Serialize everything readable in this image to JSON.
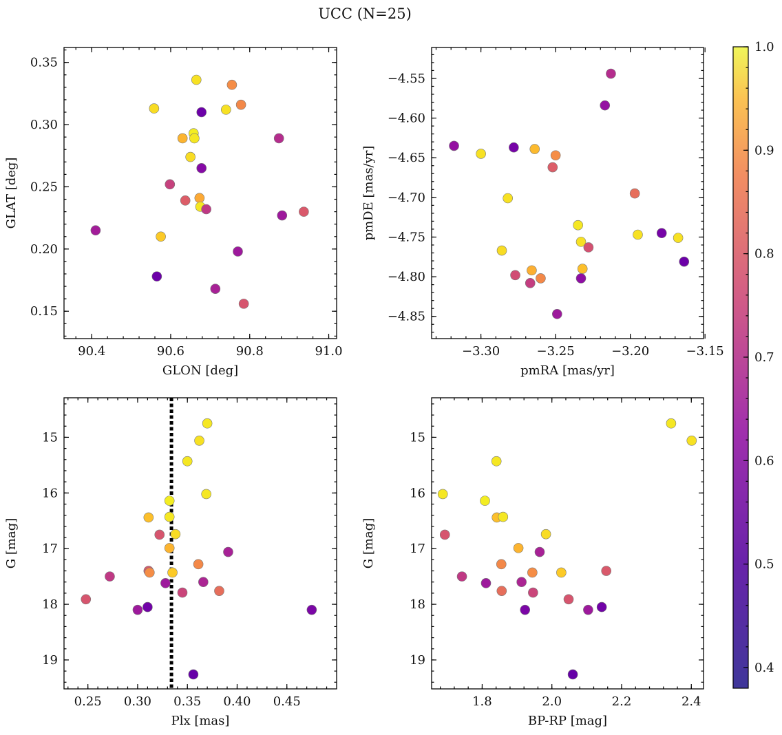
{
  "title": "UCC (N=25)",
  "colorbar": {
    "range": [
      0.38,
      1.0
    ],
    "ticks": [
      0.4,
      0.5,
      0.6,
      0.7,
      0.8,
      0.9,
      1.0
    ],
    "tick_labels": [
      "0.4",
      "0.5",
      "0.6",
      "0.7",
      "0.8",
      "0.9",
      "1.0"
    ],
    "colormap": "plasma"
  },
  "chart_data": [
    {
      "type": "scatter",
      "xlabel": "GLON [deg]",
      "ylabel": "GLAT [deg]",
      "xlim": [
        90.33,
        91.02
      ],
      "ylim": [
        0.128,
        0.362
      ],
      "xticks": [
        90.4,
        90.6,
        90.8,
        91.0
      ],
      "xtick_labels": [
        "90.4",
        "90.6",
        "90.8",
        "91.0"
      ],
      "yticks": [
        0.15,
        0.2,
        0.25,
        0.3,
        0.35
      ],
      "ytick_labels": [
        "0.15",
        "0.20",
        "0.25",
        "0.30",
        "0.35"
      ],
      "x_inverted": false,
      "y_inverted": false,
      "points": [
        {
          "x": 90.665,
          "y": 0.336,
          "c": 0.96
        },
        {
          "x": 90.755,
          "y": 0.332,
          "c": 0.8
        },
        {
          "x": 90.558,
          "y": 0.313,
          "c": 0.95
        },
        {
          "x": 90.74,
          "y": 0.312,
          "c": 0.96
        },
        {
          "x": 90.778,
          "y": 0.316,
          "c": 0.79
        },
        {
          "x": 90.678,
          "y": 0.31,
          "c": 0.42
        },
        {
          "x": 90.63,
          "y": 0.289,
          "c": 0.88
        },
        {
          "x": 90.658,
          "y": 0.293,
          "c": 0.98
        },
        {
          "x": 90.66,
          "y": 0.289,
          "c": 0.97
        },
        {
          "x": 90.874,
          "y": 0.289,
          "c": 0.57
        },
        {
          "x": 90.65,
          "y": 0.274,
          "c": 0.95
        },
        {
          "x": 90.678,
          "y": 0.265,
          "c": 0.47
        },
        {
          "x": 90.598,
          "y": 0.252,
          "c": 0.62
        },
        {
          "x": 90.637,
          "y": 0.239,
          "c": 0.69
        },
        {
          "x": 90.673,
          "y": 0.241,
          "c": 0.86
        },
        {
          "x": 90.675,
          "y": 0.234,
          "c": 0.97
        },
        {
          "x": 90.69,
          "y": 0.232,
          "c": 0.6
        },
        {
          "x": 90.41,
          "y": 0.215,
          "c": 0.53
        },
        {
          "x": 90.882,
          "y": 0.227,
          "c": 0.52
        },
        {
          "x": 90.937,
          "y": 0.23,
          "c": 0.68
        },
        {
          "x": 90.575,
          "y": 0.21,
          "c": 0.92
        },
        {
          "x": 90.77,
          "y": 0.198,
          "c": 0.52
        },
        {
          "x": 90.565,
          "y": 0.178,
          "c": 0.42
        },
        {
          "x": 90.713,
          "y": 0.168,
          "c": 0.54
        },
        {
          "x": 90.785,
          "y": 0.156,
          "c": 0.67
        }
      ]
    },
    {
      "type": "scatter",
      "xlabel": "pmRA [mas/yr]",
      "ylabel": "pmDE [mas/yr]",
      "xlim": [
        -3.333,
        -3.151
      ],
      "ylim": [
        -4.878,
        -4.511
      ],
      "xticks": [
        -3.3,
        -3.25,
        -3.2,
        -3.15
      ],
      "xtick_labels": [
        "−3.30",
        "−3.25",
        "−3.20",
        "−3.15"
      ],
      "yticks": [
        -4.85,
        -4.8,
        -4.75,
        -4.7,
        -4.65,
        -4.6,
        -4.55
      ],
      "ytick_labels": [
        "−4.85",
        "−4.80",
        "−4.75",
        "−4.70",
        "−4.65",
        "−4.60",
        "−4.55"
      ],
      "x_inverted": false,
      "y_inverted": false,
      "points": [
        {
          "x": -3.213,
          "y": -4.544,
          "c": 0.57
        },
        {
          "x": -3.217,
          "y": -4.584,
          "c": 0.5
        },
        {
          "x": -3.318,
          "y": -4.635,
          "c": 0.5
        },
        {
          "x": -3.278,
          "y": -4.637,
          "c": 0.44
        },
        {
          "x": -3.3,
          "y": -4.645,
          "c": 0.96
        },
        {
          "x": -3.264,
          "y": -4.639,
          "c": 0.89
        },
        {
          "x": -3.25,
          "y": -4.647,
          "c": 0.8
        },
        {
          "x": -3.252,
          "y": -4.662,
          "c": 0.69
        },
        {
          "x": -3.197,
          "y": -4.695,
          "c": 0.73
        },
        {
          "x": -3.282,
          "y": -4.701,
          "c": 0.96
        },
        {
          "x": -3.235,
          "y": -4.735,
          "c": 0.97
        },
        {
          "x": -3.233,
          "y": -4.756,
          "c": 0.96
        },
        {
          "x": -3.228,
          "y": -4.763,
          "c": 0.66
        },
        {
          "x": -3.195,
          "y": -4.747,
          "c": 0.96
        },
        {
          "x": -3.179,
          "y": -4.745,
          "c": 0.44
        },
        {
          "x": -3.168,
          "y": -4.751,
          "c": 0.96
        },
        {
          "x": -3.164,
          "y": -4.781,
          "c": 0.42
        },
        {
          "x": -3.286,
          "y": -4.767,
          "c": 0.95
        },
        {
          "x": -3.266,
          "y": -4.792,
          "c": 0.87
        },
        {
          "x": -3.232,
          "y": -4.79,
          "c": 0.9
        },
        {
          "x": -3.277,
          "y": -4.798,
          "c": 0.65
        },
        {
          "x": -3.26,
          "y": -4.802,
          "c": 0.79
        },
        {
          "x": -3.267,
          "y": -4.808,
          "c": 0.61
        },
        {
          "x": -3.233,
          "y": -4.802,
          "c": 0.49
        },
        {
          "x": -3.249,
          "y": -4.847,
          "c": 0.52
        }
      ]
    },
    {
      "type": "scatter",
      "xlabel": "Plx [mas]",
      "ylabel": "G [mag]",
      "xlim": [
        0.226,
        0.5
      ],
      "ylim": [
        19.52,
        14.29
      ],
      "xticks": [
        0.25,
        0.3,
        0.35,
        0.4,
        0.45
      ],
      "xtick_labels": [
        "0.25",
        "0.30",
        "0.35",
        "0.40",
        "0.45"
      ],
      "yticks": [
        15,
        16,
        17,
        18,
        19
      ],
      "ytick_labels": [
        "15",
        "16",
        "17",
        "18",
        "19"
      ],
      "x_inverted": false,
      "y_inverted": true,
      "vline": {
        "x": 0.334,
        "style": "dotted",
        "color": "#000000"
      },
      "points": [
        {
          "x": 0.37,
          "y": 14.75,
          "c": 0.97
        },
        {
          "x": 0.362,
          "y": 15.06,
          "c": 0.96
        },
        {
          "x": 0.35,
          "y": 15.43,
          "c": 0.97
        },
        {
          "x": 0.369,
          "y": 16.02,
          "c": 0.97
        },
        {
          "x": 0.332,
          "y": 16.14,
          "c": 0.98
        },
        {
          "x": 0.311,
          "y": 16.44,
          "c": 0.9
        },
        {
          "x": 0.332,
          "y": 16.43,
          "c": 0.97
        },
        {
          "x": 0.322,
          "y": 16.75,
          "c": 0.67
        },
        {
          "x": 0.338,
          "y": 16.74,
          "c": 0.95
        },
        {
          "x": 0.332,
          "y": 16.99,
          "c": 0.88
        },
        {
          "x": 0.391,
          "y": 17.06,
          "c": 0.54
        },
        {
          "x": 0.361,
          "y": 17.28,
          "c": 0.79
        },
        {
          "x": 0.311,
          "y": 17.4,
          "c": 0.68
        },
        {
          "x": 0.312,
          "y": 17.43,
          "c": 0.8
        },
        {
          "x": 0.335,
          "y": 17.43,
          "c": 0.92
        },
        {
          "x": 0.272,
          "y": 17.5,
          "c": 0.6
        },
        {
          "x": 0.328,
          "y": 17.62,
          "c": 0.52
        },
        {
          "x": 0.366,
          "y": 17.6,
          "c": 0.55
        },
        {
          "x": 0.345,
          "y": 17.79,
          "c": 0.63
        },
        {
          "x": 0.382,
          "y": 17.76,
          "c": 0.73
        },
        {
          "x": 0.248,
          "y": 17.91,
          "c": 0.67
        },
        {
          "x": 0.3,
          "y": 18.1,
          "c": 0.52
        },
        {
          "x": 0.31,
          "y": 18.05,
          "c": 0.43
        },
        {
          "x": 0.475,
          "y": 18.1,
          "c": 0.45
        },
        {
          "x": 0.356,
          "y": 19.26,
          "c": 0.41
        }
      ]
    },
    {
      "type": "scatter",
      "xlabel": "BP-RP [mag]",
      "ylabel": "G [mag]",
      "xlim": [
        1.655,
        2.435
      ],
      "ylim": [
        19.52,
        14.29
      ],
      "xticks": [
        1.8,
        2.0,
        2.2,
        2.4
      ],
      "xtick_labels": [
        "1.8",
        "2.0",
        "2.2",
        "2.4"
      ],
      "yticks": [
        15,
        16,
        17,
        18,
        19
      ],
      "ytick_labels": [
        "15",
        "16",
        "17",
        "18",
        "19"
      ],
      "x_inverted": false,
      "y_inverted": true,
      "points": [
        {
          "x": 2.342,
          "y": 14.75,
          "c": 0.97
        },
        {
          "x": 2.401,
          "y": 15.06,
          "c": 0.96
        },
        {
          "x": 1.841,
          "y": 15.43,
          "c": 0.97
        },
        {
          "x": 1.687,
          "y": 16.02,
          "c": 0.97
        },
        {
          "x": 1.808,
          "y": 16.14,
          "c": 0.98
        },
        {
          "x": 1.842,
          "y": 16.44,
          "c": 0.9
        },
        {
          "x": 1.86,
          "y": 16.43,
          "c": 0.97
        },
        {
          "x": 1.693,
          "y": 16.75,
          "c": 0.67
        },
        {
          "x": 1.983,
          "y": 16.74,
          "c": 0.95
        },
        {
          "x": 1.904,
          "y": 16.99,
          "c": 0.88
        },
        {
          "x": 1.965,
          "y": 17.06,
          "c": 0.54
        },
        {
          "x": 1.855,
          "y": 17.28,
          "c": 0.79
        },
        {
          "x": 2.156,
          "y": 17.4,
          "c": 0.68
        },
        {
          "x": 1.944,
          "y": 17.43,
          "c": 0.8
        },
        {
          "x": 2.027,
          "y": 17.43,
          "c": 0.92
        },
        {
          "x": 1.742,
          "y": 17.5,
          "c": 0.6
        },
        {
          "x": 1.811,
          "y": 17.62,
          "c": 0.52
        },
        {
          "x": 1.913,
          "y": 17.6,
          "c": 0.55
        },
        {
          "x": 1.946,
          "y": 17.79,
          "c": 0.63
        },
        {
          "x": 1.856,
          "y": 17.76,
          "c": 0.73
        },
        {
          "x": 2.048,
          "y": 17.91,
          "c": 0.67
        },
        {
          "x": 2.104,
          "y": 18.1,
          "c": 0.52
        },
        {
          "x": 2.143,
          "y": 18.05,
          "c": 0.43
        },
        {
          "x": 1.923,
          "y": 18.1,
          "c": 0.45
        },
        {
          "x": 2.06,
          "y": 19.26,
          "c": 0.41
        }
      ]
    }
  ]
}
